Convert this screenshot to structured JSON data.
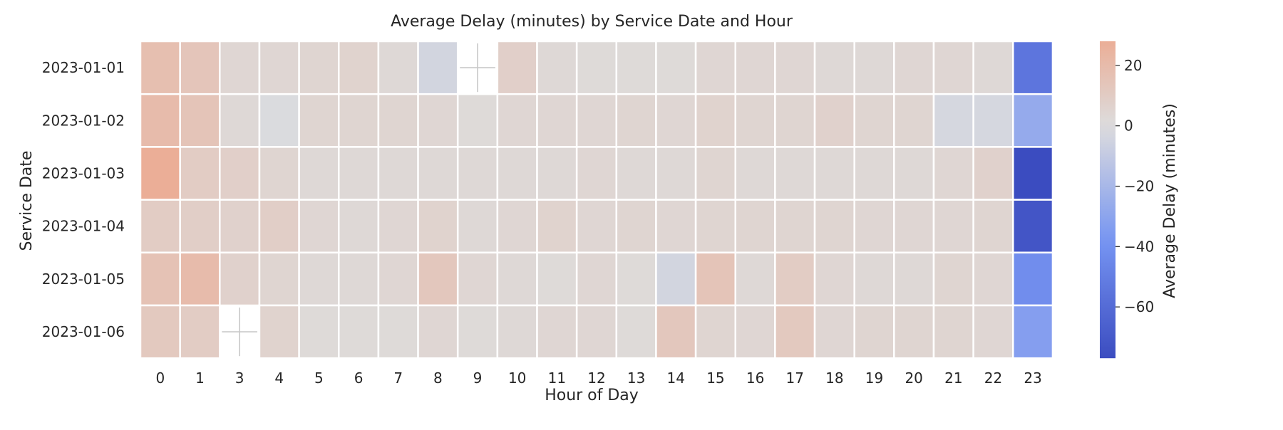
{
  "chart_data": {
    "type": "heatmap",
    "title": "Average Delay (minutes) by Service Date and Hour",
    "xlabel": "Hour of Day",
    "ylabel": "Service Date",
    "x": [
      "0",
      "1",
      "3",
      "4",
      "5",
      "6",
      "7",
      "8",
      "9",
      "10",
      "11",
      "12",
      "13",
      "14",
      "15",
      "16",
      "17",
      "18",
      "19",
      "20",
      "21",
      "22",
      "23"
    ],
    "y": [
      "2023-01-01",
      "2023-01-02",
      "2023-01-03",
      "2023-01-04",
      "2023-01-05",
      "2023-01-06"
    ],
    "values": [
      [
        18,
        14,
        4,
        4,
        5,
        6,
        3,
        -4,
        null,
        8,
        3,
        2,
        2,
        2,
        4,
        4,
        4,
        3,
        3,
        4,
        4,
        3,
        -55
      ],
      [
        20,
        15,
        3,
        -1,
        5,
        5,
        5,
        4,
        2,
        4,
        4,
        4,
        5,
        4,
        6,
        5,
        5,
        7,
        5,
        5,
        -3,
        -3,
        -27
      ],
      [
        28,
        10,
        8,
        5,
        3,
        3,
        3,
        3,
        3,
        3,
        3,
        4,
        3,
        3,
        5,
        3,
        3,
        3,
        3,
        3,
        4,
        7,
        -77
      ],
      [
        10,
        9,
        7,
        9,
        4,
        3,
        4,
        6,
        3,
        4,
        6,
        4,
        5,
        4,
        5,
        5,
        5,
        5,
        4,
        4,
        4,
        5,
        -72
      ],
      [
        16,
        20,
        7,
        5,
        3,
        3,
        4,
        13,
        4,
        3,
        2,
        4,
        2,
        -4,
        15,
        3,
        10,
        4,
        3,
        3,
        5,
        4,
        -42
      ],
      [
        12,
        10,
        null,
        6,
        2,
        2,
        2,
        4,
        2,
        3,
        4,
        4,
        2,
        13,
        5,
        4,
        12,
        4,
        5,
        5,
        5,
        4,
        -33
      ]
    ],
    "colorbar": {
      "label": "Average Delay (minutes)",
      "min": -77,
      "max": 28,
      "center": 0,
      "ticks": [
        20,
        0,
        -20,
        -40,
        -60
      ],
      "tick_labels": [
        "20",
        "0",
        "−20",
        "−40",
        "−60"
      ]
    },
    "colormap": "coolwarm",
    "missing_marker": "cross"
  }
}
